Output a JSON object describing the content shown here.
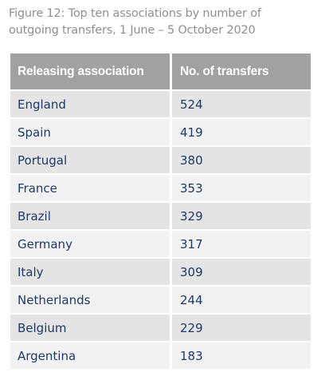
{
  "caption": {
    "line1": "Figure 12: Top ten associations by number of",
    "line2": "outgoing transfers, 1 June – 5 October 2020"
  },
  "chart_data": {
    "type": "table",
    "title": "Figure 12: Top ten associations by number of outgoing transfers, 1 June – 5 October 2020",
    "columns": [
      "Releasing association",
      "No. of transfers"
    ],
    "rows": [
      [
        "England",
        "524"
      ],
      [
        "Spain",
        "419"
      ],
      [
        "Portugal",
        "380"
      ],
      [
        "France",
        "353"
      ],
      [
        "Brazil",
        "329"
      ],
      [
        "Germany",
        "317"
      ],
      [
        "Italy",
        "309"
      ],
      [
        "Netherlands",
        "244"
      ],
      [
        "Belgium",
        "229"
      ],
      [
        "Argentina",
        "183"
      ]
    ]
  },
  "colors": {
    "header_bg": "#a1a1a1",
    "row_dark": "#e4e4e4",
    "row_light": "#f2f2f2",
    "text": "#1f3a66",
    "caption": "#8f8f8f"
  }
}
